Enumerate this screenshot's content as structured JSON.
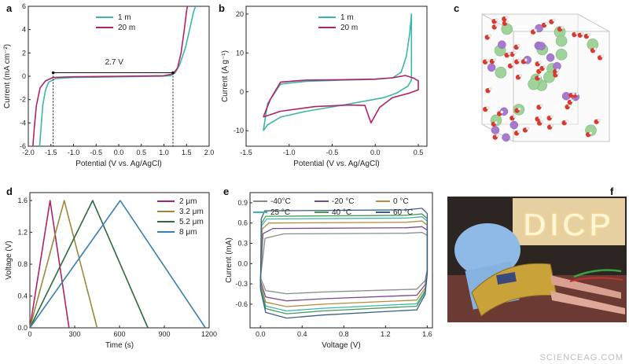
{
  "watermark": "SCIENCEAG.COM",
  "panel_labels": [
    "a",
    "b",
    "c",
    "d",
    "e",
    "f"
  ],
  "photo_sign": "DICP",
  "molecule_colors": {
    "large_green": "#9fd39a",
    "purple": "#a77ad0",
    "red": "#d83a2e",
    "white": "#f1f1f1"
  },
  "chart_data": [
    {
      "id": "a",
      "type": "line",
      "xlabel": "Potential (V vs. Ag/AgCl)",
      "ylabel": "Current (mA cm⁻²)",
      "xlim": [
        -2.0,
        2.0
      ],
      "ylim": [
        -6,
        6
      ],
      "xticks": [
        "-2.0",
        "-1.5",
        "-1.0",
        "-0.5",
        "0.0",
        "0.5",
        "1.0",
        "1.5",
        "2.0"
      ],
      "yticks": [
        "-6",
        "-4",
        "-2",
        "0",
        "2",
        "4",
        "6"
      ],
      "annotation": "2.7 V",
      "legend_position": "top-center",
      "series": [
        {
          "name": "1 m",
          "color": "#3bb6a8",
          "points": [
            [
              -1.75,
              -6
            ],
            [
              -1.72,
              -4.5
            ],
            [
              -1.68,
              -2.5
            ],
            [
              -1.62,
              -1.2
            ],
            [
              -1.55,
              -0.5
            ],
            [
              -1.4,
              -0.2
            ],
            [
              -1.0,
              -0.1
            ],
            [
              0.0,
              -0.05
            ],
            [
              0.9,
              0.0
            ],
            [
              1.15,
              0.05
            ],
            [
              1.25,
              0.3
            ],
            [
              1.35,
              1.0
            ],
            [
              1.48,
              2.5
            ],
            [
              1.58,
              4.2
            ],
            [
              1.66,
              5.6
            ],
            [
              1.7,
              6
            ]
          ]
        },
        {
          "name": "20 m",
          "color": "#b0226a",
          "points": [
            [
              -1.9,
              -6
            ],
            [
              -1.87,
              -4.5
            ],
            [
              -1.82,
              -2.5
            ],
            [
              -1.74,
              -1.0
            ],
            [
              -1.62,
              -0.4
            ],
            [
              -1.45,
              -0.1
            ],
            [
              -1.0,
              -0.05
            ],
            [
              0.0,
              0.0
            ],
            [
              1.0,
              0.05
            ],
            [
              1.2,
              0.2
            ],
            [
              1.3,
              0.7
            ],
            [
              1.38,
              2.0
            ],
            [
              1.45,
              4.0
            ],
            [
              1.5,
              5.6
            ],
            [
              1.52,
              6
            ]
          ]
        }
      ]
    },
    {
      "id": "b",
      "type": "line",
      "xlabel": "Potential (V vs. Ag/AgCl)",
      "ylabel": "Current (A g⁻¹)",
      "xlim": [
        -1.5,
        0.6
      ],
      "ylim": [
        -14,
        22
      ],
      "xticks": [
        "-1.5",
        "-1.0",
        "-0.5",
        "0.0",
        "0.5"
      ],
      "yticks": [
        "-10",
        "0",
        "10",
        "20"
      ],
      "legend_position": "top-right",
      "series": [
        {
          "name": "1 m",
          "color": "#3bb6a8",
          "points": [
            [
              -1.3,
              -10
            ],
            [
              -1.25,
              -3
            ],
            [
              -1.1,
              2
            ],
            [
              -0.8,
              2.7
            ],
            [
              -0.4,
              3.0
            ],
            [
              0.0,
              3.2
            ],
            [
              0.2,
              3.6
            ],
            [
              0.3,
              5
            ],
            [
              0.36,
              9
            ],
            [
              0.4,
              15
            ],
            [
              0.42,
              20
            ],
            [
              0.42,
              3
            ],
            [
              0.38,
              1.5
            ],
            [
              0.25,
              -0.3
            ],
            [
              0.1,
              -1.5
            ],
            [
              -0.4,
              -3.5
            ],
            [
              -0.8,
              -5
            ],
            [
              -1.1,
              -6.5
            ],
            [
              -1.25,
              -8.5
            ],
            [
              -1.3,
              -10
            ]
          ]
        },
        {
          "name": "20 m",
          "color": "#b0226a",
          "points": [
            [
              -1.3,
              -6.5
            ],
            [
              -1.22,
              -2
            ],
            [
              -1.1,
              2.5
            ],
            [
              -0.8,
              3.0
            ],
            [
              -0.4,
              3.1
            ],
            [
              0.0,
              3.3
            ],
            [
              0.2,
              3.6
            ],
            [
              0.35,
              4.2
            ],
            [
              0.45,
              3.5
            ],
            [
              0.5,
              2.8
            ],
            [
              0.5,
              0.5
            ],
            [
              0.4,
              -0.3
            ],
            [
              0.2,
              -1.5
            ],
            [
              0.05,
              -4
            ],
            [
              -0.05,
              -8
            ],
            [
              -0.12,
              -3.5
            ],
            [
              -0.3,
              -3.4
            ],
            [
              -0.7,
              -3.8
            ],
            [
              -1.1,
              -5
            ],
            [
              -1.3,
              -6.5
            ]
          ]
        }
      ]
    },
    {
      "id": "d",
      "type": "line",
      "xlabel": "Time (s)",
      "ylabel": "Voltage (V)",
      "xlim": [
        0,
        1200
      ],
      "ylim": [
        0,
        1.7
      ],
      "xticks": [
        "0",
        "300",
        "600",
        "900",
        "1200"
      ],
      "yticks": [
        "0.0",
        "0.4",
        "0.8",
        "1.2",
        "1.6"
      ],
      "legend_position": "top-right",
      "series": [
        {
          "name": "2 μm",
          "color": "#b0226a",
          "points": [
            [
              0,
              0
            ],
            [
              135,
              1.6
            ],
            [
              262,
              0
            ]
          ]
        },
        {
          "name": "3.2 μm",
          "color": "#9a8a3a",
          "points": [
            [
              0,
              0
            ],
            [
              230,
              1.6
            ],
            [
              450,
              0
            ]
          ]
        },
        {
          "name": "5.2 μm",
          "color": "#2e6b3a",
          "points": [
            [
              0,
              0
            ],
            [
              420,
              1.6
            ],
            [
              790,
              0
            ]
          ]
        },
        {
          "name": "8 μm",
          "color": "#3a7fb0",
          "points": [
            [
              0,
              0
            ],
            [
              605,
              1.6
            ],
            [
              1175,
              0
            ]
          ]
        }
      ]
    },
    {
      "id": "e",
      "type": "line",
      "xlabel": "Voltage (V)",
      "ylabel": "Current (mA)",
      "xlim": [
        -0.1,
        1.65
      ],
      "ylim": [
        -0.95,
        1.05
      ],
      "xticks": [
        "0.0",
        "0.4",
        "0.8",
        "1.2",
        "1.6"
      ],
      "yticks": [
        "-0.6",
        "-0.3",
        "0.0",
        "0.3",
        "0.6",
        "0.9"
      ],
      "legend_position": "top",
      "series": [
        {
          "name": "-40°C",
          "color": "#8a8a8a",
          "top": 0.44,
          "bot": -0.42,
          "edge": 0.22
        },
        {
          "name": "-20 °C",
          "color": "#7a4a8a",
          "top": 0.52,
          "bot": -0.52,
          "edge": 0.12
        },
        {
          "name": "0 °C",
          "color": "#b98a3a",
          "top": 0.6,
          "bot": -0.6,
          "edge": 0.08
        },
        {
          "name": "25 °C",
          "color": "#3bb6a8",
          "top": 0.66,
          "bot": -0.66,
          "edge": 0.06
        },
        {
          "name": "40 °C",
          "color": "#4a9a5a",
          "top": 0.7,
          "bot": -0.7,
          "edge": 0.05
        },
        {
          "name": "60 °C",
          "color": "#3a5f86",
          "top": 0.78,
          "bot": -0.76,
          "edge": 0.04
        }
      ]
    }
  ]
}
